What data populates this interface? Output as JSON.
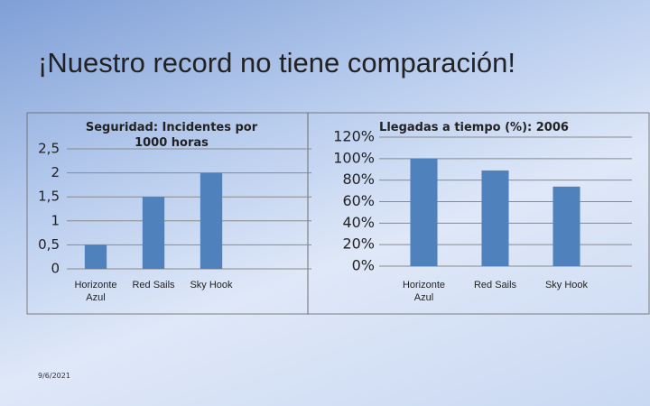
{
  "title": "¡Nuestro record no tiene comparación!",
  "date": "9/6/2021",
  "chart_data": [
    {
      "type": "bar",
      "title": "Seguridad: Incidentes por 1000 horas",
      "categories": [
        "Horizonte Azul",
        "Red Sails",
        "Sky Hook"
      ],
      "values": [
        0.5,
        1.5,
        2
      ],
      "color": "#4f81bd",
      "ylim": [
        0,
        2.5
      ],
      "yticks": [
        0,
        {
          "value": 0.5,
          "label": "0,5"
        },
        1,
        {
          "value": 1.5,
          "label": "1,5"
        },
        2,
        {
          "value": 2.5,
          "label": "2,5"
        }
      ],
      "grid": true
    },
    {
      "type": "bar",
      "title": "Llegadas a tiempo (%): 2006",
      "categories": [
        "Horizonte Azul",
        "Red Sails",
        "Sky Hook"
      ],
      "values": [
        100,
        89,
        74
      ],
      "color": "#4f81bd",
      "ylim": [
        0,
        120
      ],
      "yticks": [
        {
          "value": 0,
          "label": "0%"
        },
        {
          "value": 20,
          "label": "20%"
        },
        {
          "value": 40,
          "label": "40%"
        },
        {
          "value": 60,
          "label": "60%"
        },
        {
          "value": 80,
          "label": "80%"
        },
        {
          "value": 100,
          "label": "100%"
        },
        {
          "value": 120,
          "label": "120%"
        }
      ],
      "grid": true
    }
  ]
}
